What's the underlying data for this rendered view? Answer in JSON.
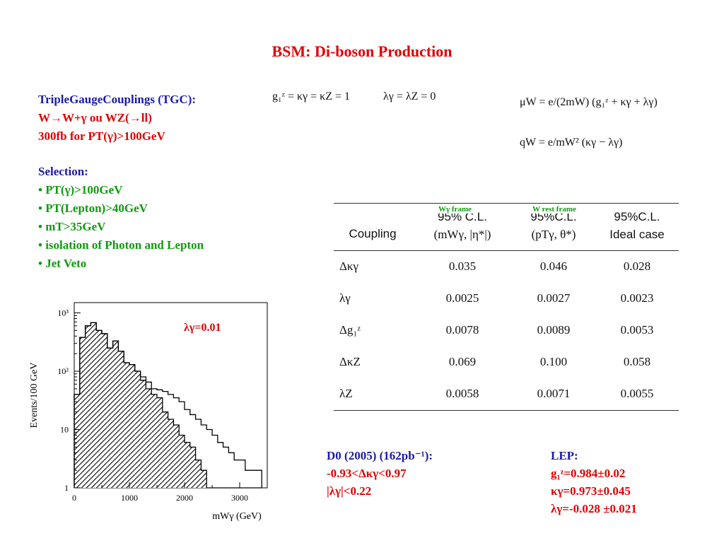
{
  "title": "BSM: Di-boson Production",
  "tgc": {
    "line1": "TripleGaugeCouplings (TGC):",
    "line2": "W→W+γ ou WZ(→ll)",
    "line3": "300fb for PT(γ)>100GeV"
  },
  "formulas": {
    "sm1": "g₁ᶻ = κγ = κZ = 1",
    "sm2": "λγ = λZ = 0",
    "mu": "μW = e/(2mW) (g₁ᶻ + κγ + λγ)",
    "q": "qW = e/mW² (κγ − λγ)"
  },
  "selection": {
    "heading": "Selection:",
    "items": [
      "• PT(γ)>100GeV",
      "• PT(Lepton)>40GeV",
      "• mT>35GeV",
      "• isolation of Photon and Lepton",
      "• Jet Veto"
    ]
  },
  "table": {
    "tags": [
      "Wγ frame",
      "W rest frame"
    ],
    "headers": {
      "coupling": "Coupling",
      "col1_top": "95% C.L.",
      "col1_bot": "(mWγ, |η*|)",
      "col2_top": "95%C.L.",
      "col2_bot": "(pTγ, θ*)",
      "col3_top": "95%C.L.",
      "col3_bot": "Ideal case"
    },
    "rows": [
      {
        "coupling": "Δκγ",
        "v1": "0.035",
        "v2": "0.046",
        "v3": "0.028"
      },
      {
        "coupling": "λγ",
        "v1": "0.0025",
        "v2": "0.0027",
        "v3": "0.0023"
      },
      {
        "coupling": "Δg₁ᶻ",
        "v1": "0.0078",
        "v2": "0.0089",
        "v3": "0.0053"
      },
      {
        "coupling": "ΔκZ",
        "v1": "0.069",
        "v2": "0.100",
        "v3": "0.058"
      },
      {
        "coupling": "λZ",
        "v1": "0.0058",
        "v2": "0.0071",
        "v3": "0.0055"
      }
    ]
  },
  "d0": {
    "line1": "D0 (2005) (162pb⁻¹):",
    "line2": "-0.93<Δκγ<0.97",
    "line3": "|λγ|<0.22"
  },
  "lep": {
    "line1": "LEP:",
    "line2": "g₁ᶻ=0.984±0.02",
    "line3": "κγ=0.973±0.045",
    "line4": "λγ=-0.028 ±0.021"
  },
  "chart_data": {
    "type": "bar",
    "annotation": "λγ=0.01",
    "xlabel": "mWγ (GeV)",
    "ylabel": "Events/100 GeV",
    "xlim": [
      0,
      3500
    ],
    "ylim": [
      1,
      1500
    ],
    "yscale": "log",
    "xticks": [
      "0",
      "1000",
      "2000",
      "3000"
    ],
    "yticks": [
      "1",
      "10",
      "10²",
      "10³"
    ],
    "bin_width": 100,
    "series": [
      {
        "values": [
          40,
          380,
          600,
          680,
          500,
          440,
          250,
          330,
          220,
          140,
          130,
          100,
          70,
          50,
          40,
          35,
          20,
          15,
          12,
          8,
          6,
          5,
          3,
          2,
          1,
          1,
          1,
          1,
          0,
          0,
          0,
          0,
          0,
          0
        ]
      },
      {
        "values": [
          40,
          380,
          600,
          680,
          500,
          440,
          250,
          330,
          220,
          140,
          130,
          100,
          80,
          65,
          50,
          48,
          45,
          40,
          35,
          30,
          22,
          18,
          15,
          12,
          10,
          8,
          6,
          5,
          4,
          3,
          3,
          2,
          2,
          2
        ]
      }
    ]
  }
}
